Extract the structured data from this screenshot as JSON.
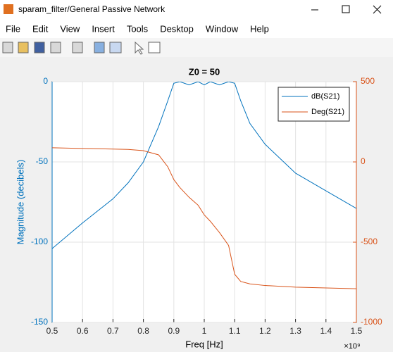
{
  "window": {
    "title": "sparam_filter/General Passive Network",
    "menus": [
      "File",
      "Edit",
      "View",
      "Insert",
      "Tools",
      "Desktop",
      "Window",
      "Help"
    ]
  },
  "chart_data": {
    "type": "line",
    "title": "Z0 = 50",
    "xlabel": "Freq [Hz]",
    "ylabel": "Magnitude (decibels)",
    "x_multiplier": "×10⁹",
    "x": [
      0.5,
      0.6,
      0.7,
      0.75,
      0.8,
      0.85,
      0.88,
      0.9,
      0.92,
      0.95,
      0.98,
      1.0,
      1.02,
      1.05,
      1.08,
      1.1,
      1.12,
      1.15,
      1.2,
      1.3,
      1.4,
      1.5
    ],
    "series": [
      {
        "name": "dB(S21)",
        "color": "#0072bd",
        "values": [
          -104,
          -88,
          -73,
          -63,
          -50,
          -28,
          -12,
          -1,
          0,
          -2,
          0,
          -2,
          0,
          -2,
          0,
          -1,
          -12,
          -26,
          -39,
          -57,
          -68,
          -79
        ]
      },
      {
        "name": "Deg(S21)",
        "color": "#d95319",
        "axis": "y2",
        "values": [
          88,
          84,
          80,
          78,
          70,
          44,
          -30,
          -110,
          -160,
          -220,
          -270,
          -330,
          -370,
          -440,
          -520,
          -700,
          -745,
          -760,
          -770,
          -780,
          -785,
          -790
        ]
      }
    ],
    "xlim": [
      0.5,
      1.5
    ],
    "xticks": [
      0.5,
      0.6,
      0.7,
      0.8,
      0.9,
      1,
      1.1,
      1.2,
      1.3,
      1.4,
      1.5
    ],
    "ylim": [
      -150,
      0
    ],
    "yticks": [
      -150,
      -100,
      -50,
      0
    ],
    "y2lim": [
      -1000,
      500
    ],
    "y2ticks": [
      -1000,
      -500,
      0,
      500
    ],
    "grid": true,
    "legend": "top-right"
  }
}
